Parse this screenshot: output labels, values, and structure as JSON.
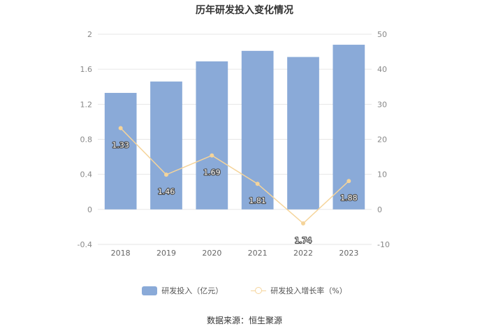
{
  "chart_data": {
    "type": "bar",
    "title": "历年研发投入变化情况",
    "categories": [
      "2018",
      "2019",
      "2020",
      "2021",
      "2022",
      "2023"
    ],
    "series": [
      {
        "name": "研发投入（亿元）",
        "type": "bar",
        "axis": "left",
        "values": [
          1.33,
          1.46,
          1.69,
          1.81,
          1.74,
          1.88
        ],
        "labels": [
          "1.33",
          "1.46",
          "1.69",
          "1.81",
          "1.74",
          "1.88"
        ],
        "color": "#8aaad8"
      },
      {
        "name": "研发投入增长率（%）",
        "type": "line",
        "axis": "right",
        "values": [
          23.2,
          9.9,
          15.4,
          7.3,
          -4.0,
          8.1
        ],
        "color": "#f5d49a"
      }
    ],
    "y_left": {
      "min": -0.4,
      "max": 2,
      "ticks": [
        "-0.4",
        "0",
        "0.4",
        "0.8",
        "1.2",
        "1.6",
        "2"
      ]
    },
    "y_right": {
      "min": -10,
      "max": 50,
      "ticks": [
        "-10",
        "0",
        "10",
        "20",
        "30",
        "40",
        "50"
      ]
    },
    "xlabel": "",
    "ylabel": "",
    "grid": true,
    "legend_position": "bottom"
  },
  "source": "数据来源：恒生聚源"
}
